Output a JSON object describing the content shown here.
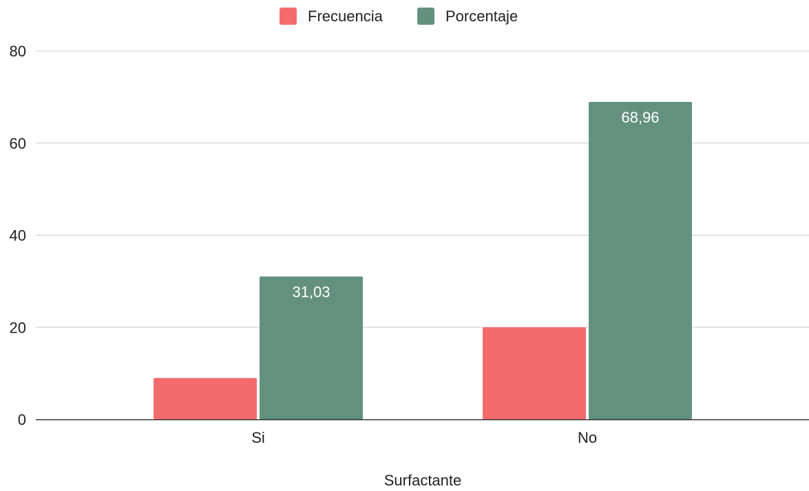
{
  "chart_data": {
    "type": "bar",
    "title": "",
    "xlabel": "Surfactante",
    "ylabel": "",
    "categories": [
      "Si",
      "No"
    ],
    "series": [
      {
        "name": "Frecuencia",
        "color": "#f46b6b",
        "values": [
          9,
          20
        ],
        "data_labels": [
          "",
          ""
        ]
      },
      {
        "name": "Porcentaje",
        "color": "#64917f",
        "values": [
          31.03,
          68.96
        ],
        "data_labels": [
          "31,03",
          "68,96"
        ]
      }
    ],
    "ylim": [
      0,
      80
    ],
    "yticks": [
      0,
      20,
      40,
      60,
      80
    ],
    "grid": true,
    "legend_position": "top-center"
  }
}
